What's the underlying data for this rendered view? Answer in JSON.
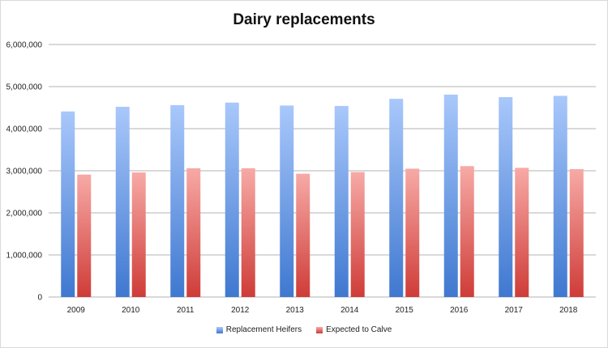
{
  "chart_data": {
    "type": "bar",
    "title": "Dairy replacements",
    "xlabel": "",
    "ylabel": "",
    "categories": [
      "2009",
      "2010",
      "2011",
      "2012",
      "2013",
      "2014",
      "2015",
      "2016",
      "2017",
      "2018"
    ],
    "series": [
      {
        "name": "Replacement Heifers",
        "color": "#5b8fd9",
        "values": [
          4410000,
          4520000,
          4560000,
          4620000,
          4550000,
          4540000,
          4710000,
          4810000,
          4750000,
          4780000
        ]
      },
      {
        "name": "Expected to Calve",
        "color": "#d9534f",
        "values": [
          2910000,
          2960000,
          3060000,
          3060000,
          2930000,
          2970000,
          3050000,
          3110000,
          3070000,
          3040000
        ]
      }
    ],
    "ylim": [
      0,
      6000000
    ],
    "yticks": [
      0,
      1000000,
      2000000,
      3000000,
      4000000,
      5000000,
      6000000
    ],
    "ytick_labels": [
      "0",
      "1,000,000",
      "2,000,000",
      "3,000,000",
      "4,000,000",
      "5,000,000",
      "6,000,000"
    ],
    "grid": true,
    "legend_position": "bottom"
  }
}
